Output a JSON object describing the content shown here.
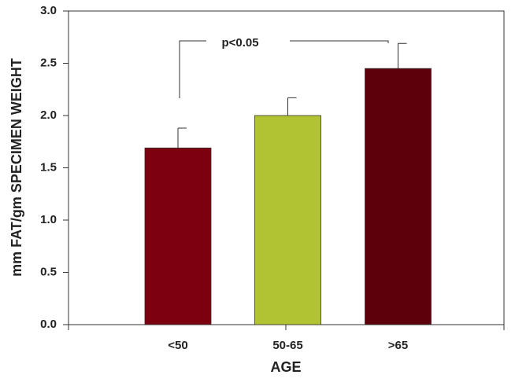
{
  "chart_data": {
    "type": "bar",
    "categories": [
      "<50",
      "50-65",
      ">65"
    ],
    "values": [
      1.69,
      2.0,
      2.45
    ],
    "errors": [
      0.19,
      0.17,
      0.24
    ],
    "colors": [
      "#7d0010",
      "#b1c232",
      "#5e000c"
    ],
    "xlabel": "AGE",
    "ylabel": "mm FAT/gm SPECIMEN WEIGHT",
    "ylim": [
      0,
      3
    ],
    "yticks": [
      {
        "value": 0,
        "label": "0.0"
      },
      {
        "value": 0.5,
        "label": "0.5"
      },
      {
        "value": 1,
        "label": "1.0"
      },
      {
        "value": 1.5,
        "label": "1.5"
      },
      {
        "value": 2,
        "label": "2.0"
      },
      {
        "value": 2.5,
        "label": "2.5"
      },
      {
        "value": 3,
        "label": "3.0"
      }
    ],
    "annotation": "p<0.05"
  }
}
